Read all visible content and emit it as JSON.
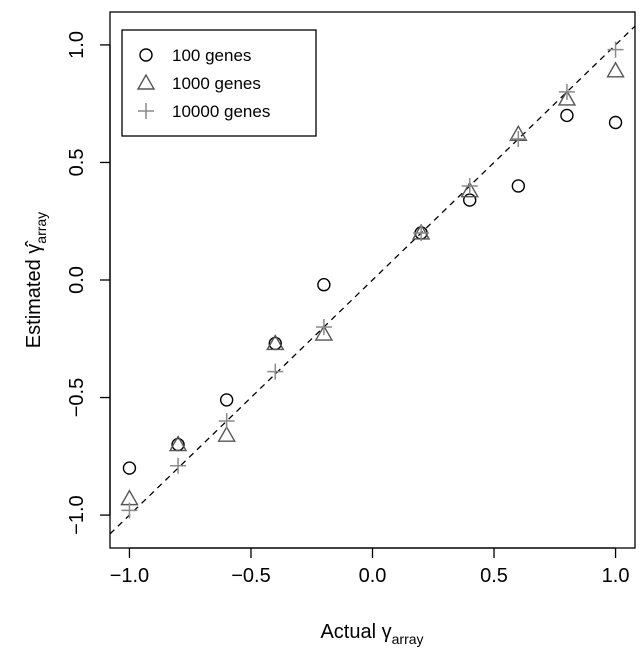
{
  "chart_data": {
    "type": "scatter",
    "xlabel": {
      "main": "Actual ",
      "symbol": "γ",
      "subscript": "array"
    },
    "ylabel": {
      "main": "Estimated ",
      "symbol": "γ̂",
      "subscript": "array"
    },
    "xlim": [
      -1.08,
      1.08
    ],
    "ylim": [
      -1.14,
      1.14
    ],
    "x_ticks": [
      -1.0,
      -0.5,
      0.0,
      0.5,
      1.0
    ],
    "x_tick_labels": [
      "−1.0",
      "−0.5",
      "0.0",
      "0.5",
      "1.0"
    ],
    "y_ticks": [
      -1.0,
      -0.5,
      0.0,
      0.5,
      1.0
    ],
    "y_tick_labels": [
      "−1.0",
      "−0.5",
      "0.0",
      "0.5",
      "1.0"
    ],
    "reference_line": {
      "slope": 1,
      "intercept": 0,
      "style": "dashed",
      "color": "#000000"
    },
    "grid": false,
    "legend_position": "top-left",
    "series": [
      {
        "name": "100 genes",
        "marker": "circle",
        "color": "#000000",
        "points": [
          {
            "x": -1.0,
            "y": -0.8
          },
          {
            "x": -0.8,
            "y": -0.7
          },
          {
            "x": -0.6,
            "y": -0.51
          },
          {
            "x": -0.4,
            "y": -0.27
          },
          {
            "x": -0.2,
            "y": -0.02
          },
          {
            "x": 0.2,
            "y": 0.2
          },
          {
            "x": 0.4,
            "y": 0.34
          },
          {
            "x": 0.6,
            "y": 0.4
          },
          {
            "x": 0.8,
            "y": 0.7
          },
          {
            "x": 1.0,
            "y": 0.67
          }
        ]
      },
      {
        "name": "1000 genes",
        "marker": "triangle",
        "color": "#555555",
        "points": [
          {
            "x": -1.0,
            "y": -0.93
          },
          {
            "x": -0.8,
            "y": -0.7
          },
          {
            "x": -0.6,
            "y": -0.66
          },
          {
            "x": -0.4,
            "y": -0.27
          },
          {
            "x": -0.2,
            "y": -0.23
          },
          {
            "x": 0.2,
            "y": 0.2
          },
          {
            "x": 0.4,
            "y": 0.38
          },
          {
            "x": 0.6,
            "y": 0.62
          },
          {
            "x": 0.8,
            "y": 0.77
          },
          {
            "x": 1.0,
            "y": 0.89
          }
        ]
      },
      {
        "name": "10000 genes",
        "marker": "plus",
        "color": "#8a8a8a",
        "points": [
          {
            "x": -1.0,
            "y": -0.98
          },
          {
            "x": -0.8,
            "y": -0.79
          },
          {
            "x": -0.6,
            "y": -0.6
          },
          {
            "x": -0.4,
            "y": -0.39
          },
          {
            "x": -0.2,
            "y": -0.2
          },
          {
            "x": 0.2,
            "y": 0.2
          },
          {
            "x": 0.4,
            "y": 0.4
          },
          {
            "x": 0.6,
            "y": 0.6
          },
          {
            "x": 0.8,
            "y": 0.8
          },
          {
            "x": 1.0,
            "y": 0.98
          }
        ]
      }
    ]
  }
}
